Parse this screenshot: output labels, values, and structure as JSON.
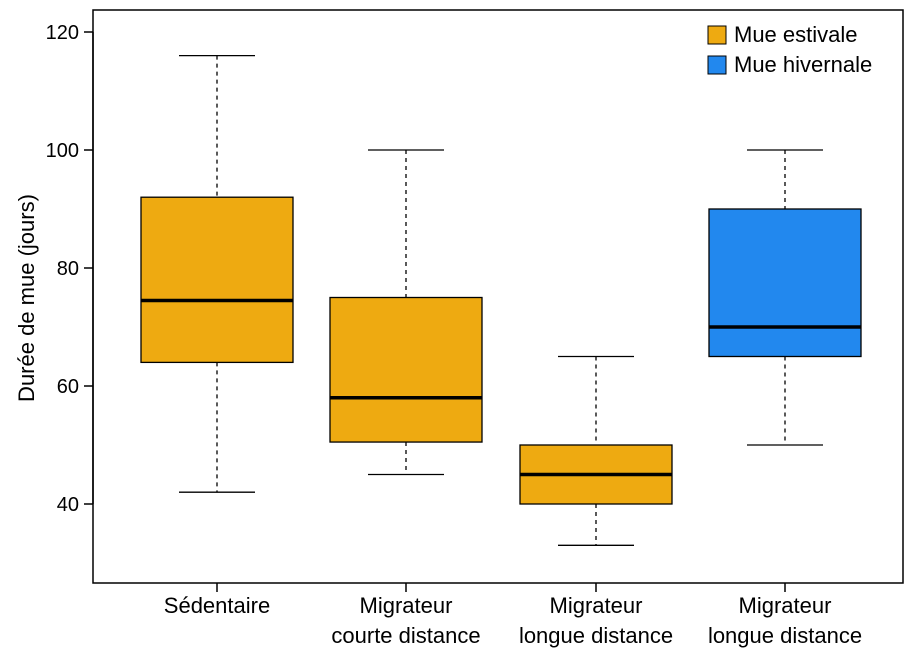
{
  "chart_data": {
    "type": "boxplot",
    "title": "",
    "ylabel": "Durée de mue (jours)",
    "xlabel": "",
    "ylim": [
      28,
      124
    ],
    "yticks": [
      40,
      60,
      80,
      100,
      120
    ],
    "grid": false,
    "legend_position": "top-right",
    "legend": [
      {
        "label": "Mue estivale",
        "color": "#EEAA11"
      },
      {
        "label": "Mue hivernale",
        "color": "#2288EE"
      }
    ],
    "categories": [
      {
        "lines": [
          "Sédentaire"
        ],
        "group": 0,
        "min": 42,
        "q1": 64,
        "median": 74.5,
        "q3": 92,
        "max": 116
      },
      {
        "lines": [
          "Migrateur",
          "courte distance"
        ],
        "group": 0,
        "min": 45,
        "q1": 50.5,
        "median": 58,
        "q3": 75,
        "max": 100
      },
      {
        "lines": [
          "Migrateur",
          "longue distance"
        ],
        "group": 0,
        "min": 33,
        "q1": 40,
        "median": 45,
        "q3": 50,
        "max": 65
      },
      {
        "lines": [
          "Migrateur",
          "longue distance"
        ],
        "group": 1,
        "min": 50,
        "q1": 65,
        "median": 70,
        "q3": 90,
        "max": 100
      }
    ]
  }
}
